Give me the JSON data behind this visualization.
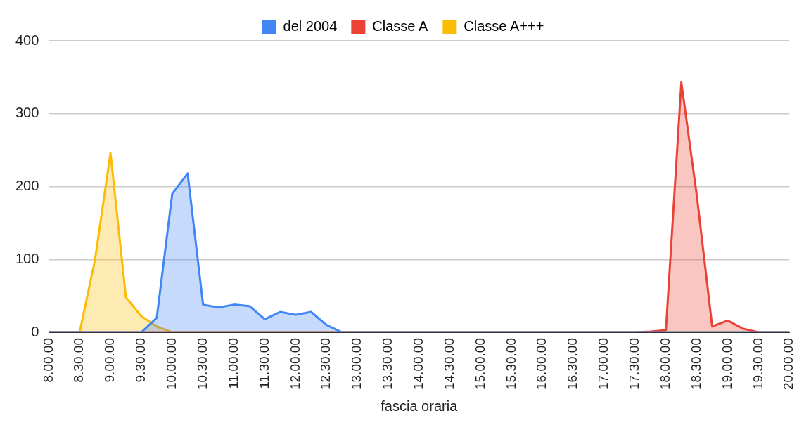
{
  "chart_data": {
    "type": "area",
    "xlabel": "fascia oraria",
    "categories": [
      "8.00.00",
      null,
      "8.30.00",
      null,
      "9.00.00",
      null,
      "9.30.00",
      null,
      "10.00.00",
      null,
      "10.30.00",
      null,
      "11.00.00",
      null,
      "11.30.00",
      null,
      "12.00.00",
      null,
      "12.30.00",
      null,
      "13.00.00",
      null,
      "13.30.00",
      null,
      "14.00.00",
      null,
      "14.30.00",
      null,
      "15.00.00",
      null,
      "15.30.00",
      null,
      "16.00.00",
      null,
      "16.30.00",
      null,
      "17.00.00",
      null,
      "17.30.00",
      null,
      "18.00.00",
      null,
      "18.30.00",
      null,
      "19.00.00",
      null,
      "19.30.00",
      null,
      "20.00.00"
    ],
    "series": [
      {
        "name": "del 2004",
        "color": "#4285f4",
        "values": [
          0,
          0,
          0,
          0,
          0,
          0,
          0,
          20,
          190,
          218,
          38,
          34,
          38,
          36,
          18,
          28,
          24,
          28,
          10,
          0,
          0,
          0,
          0,
          0,
          0,
          0,
          0,
          0,
          0,
          0,
          0,
          0,
          0,
          0,
          0,
          0,
          0,
          0,
          0,
          0,
          0,
          0,
          0,
          0,
          0,
          0,
          0,
          0,
          0
        ]
      },
      {
        "name": "Classe A",
        "color": "#ea4335",
        "values": [
          0,
          0,
          0,
          0,
          0,
          0,
          0,
          0,
          0,
          0,
          0,
          0,
          0,
          0,
          0,
          0,
          0,
          0,
          0,
          0,
          0,
          0,
          0,
          0,
          0,
          0,
          0,
          0,
          0,
          0,
          0,
          0,
          0,
          0,
          0,
          0,
          0,
          0,
          0,
          1,
          3,
          343,
          188,
          8,
          16,
          5,
          0,
          0,
          0
        ]
      },
      {
        "name": "Classe A+++",
        "color": "#fbbc04",
        "values": [
          0,
          0,
          0,
          100,
          246,
          48,
          22,
          8,
          0,
          0,
          0,
          0,
          0,
          0,
          0,
          0,
          0,
          0,
          0,
          0,
          0,
          0,
          0,
          0,
          0,
          0,
          0,
          0,
          0,
          0,
          0,
          0,
          0,
          0,
          0,
          0,
          0,
          0,
          0,
          0,
          0,
          0,
          0,
          0,
          0,
          0,
          0,
          0,
          0
        ]
      }
    ],
    "ylim": [
      0,
      400
    ],
    "yticks": [
      0,
      100,
      200,
      300,
      400
    ],
    "grid": "y",
    "legend": "top",
    "marker": "none",
    "line_style": "solid"
  }
}
